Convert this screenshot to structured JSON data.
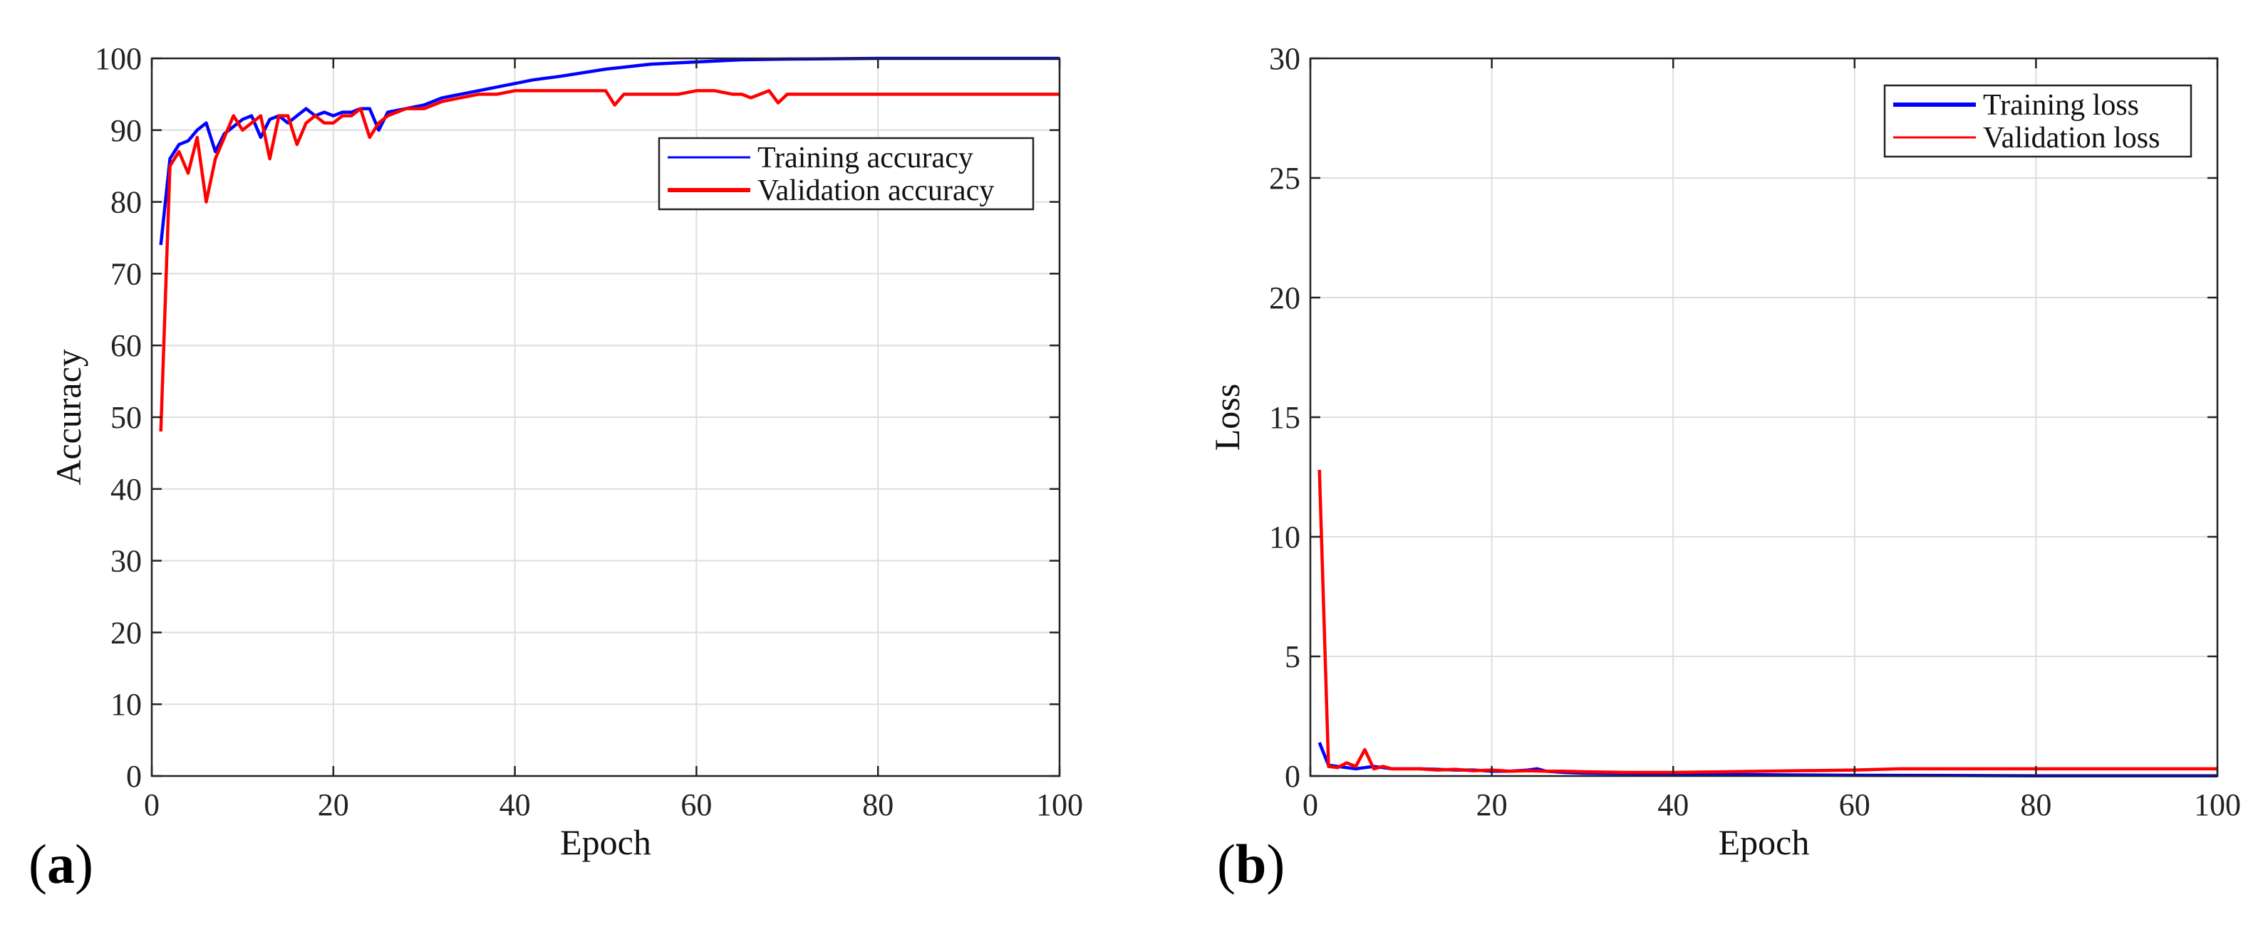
{
  "chart_data": [
    {
      "panel": "(a)",
      "type": "line",
      "xlabel": "Epoch",
      "ylabel": "Accuracy",
      "xlim": [
        0,
        100
      ],
      "ylim": [
        0,
        100
      ],
      "xticks": [
        0,
        20,
        40,
        60,
        80,
        100
      ],
      "yticks": [
        0,
        10,
        20,
        30,
        40,
        50,
        60,
        70,
        80,
        90,
        100
      ],
      "grid": true,
      "legend_position": "top-right",
      "series": [
        {
          "name": "Training accuracy",
          "color": "#0000ff",
          "x": [
            1,
            2,
            3,
            4,
            5,
            6,
            7,
            8,
            9,
            10,
            11,
            12,
            13,
            14,
            15,
            16,
            17,
            18,
            19,
            20,
            21,
            22,
            23,
            24,
            25,
            26,
            28,
            30,
            32,
            34,
            36,
            38,
            40,
            42,
            45,
            50,
            55,
            60,
            65,
            70,
            80,
            90,
            100
          ],
          "y": [
            74,
            86,
            88,
            88.5,
            90,
            91,
            87,
            89.5,
            90.5,
            91.5,
            92,
            89,
            91.5,
            92,
            91,
            92,
            93,
            92,
            92.5,
            92,
            92.5,
            92.5,
            93,
            93,
            90,
            92.5,
            93,
            93.5,
            94.5,
            95,
            95.5,
            96,
            96.5,
            97,
            97.5,
            98.5,
            99.2,
            99.5,
            99.8,
            99.9,
            100,
            100,
            100
          ]
        },
        {
          "name": "Validation accuracy",
          "color": "#ff0000",
          "x": [
            1,
            2,
            3,
            4,
            5,
            6,
            7,
            8,
            9,
            10,
            11,
            12,
            13,
            14,
            15,
            16,
            17,
            18,
            19,
            20,
            21,
            22,
            23,
            24,
            25,
            26,
            28,
            30,
            32,
            34,
            36,
            38,
            40,
            42,
            45,
            48,
            50,
            51,
            52,
            55,
            58,
            60,
            62,
            64,
            65,
            66,
            68,
            69,
            70,
            72,
            75,
            80,
            85,
            90,
            95,
            100
          ],
          "y": [
            48,
            85,
            87,
            84,
            89,
            80,
            86,
            89,
            92,
            90,
            91,
            92,
            86,
            92,
            92,
            88,
            91,
            92,
            91,
            91,
            92,
            92,
            93,
            89,
            91,
            92,
            93,
            93,
            94,
            94.5,
            95,
            95,
            95.5,
            95.5,
            95.5,
            95.5,
            95.5,
            93.5,
            95,
            95,
            95,
            95.5,
            95.5,
            95,
            95,
            94.5,
            95.5,
            93.8,
            95,
            95,
            95,
            95,
            95,
            95,
            95,
            95
          ]
        }
      ]
    },
    {
      "panel": "(b)",
      "type": "line",
      "xlabel": "Epoch",
      "ylabel": "Loss",
      "xlim": [
        0,
        100
      ],
      "ylim": [
        0,
        30
      ],
      "xticks": [
        0,
        20,
        40,
        60,
        80,
        100
      ],
      "yticks": [
        0,
        5,
        10,
        15,
        20,
        25,
        30
      ],
      "grid": true,
      "legend_position": "top-right",
      "series": [
        {
          "name": "Training loss",
          "color": "#0000ff",
          "x": [
            1,
            2,
            3,
            4,
            5,
            6,
            7,
            8,
            9,
            10,
            12,
            14,
            16,
            18,
            20,
            22,
            24,
            25,
            26,
            28,
            30,
            35,
            40,
            50,
            60,
            70,
            80,
            90,
            100
          ],
          "y": [
            1.4,
            0.45,
            0.4,
            0.35,
            0.3,
            0.35,
            0.4,
            0.35,
            0.3,
            0.3,
            0.3,
            0.28,
            0.25,
            0.25,
            0.2,
            0.2,
            0.25,
            0.3,
            0.2,
            0.15,
            0.12,
            0.1,
            0.08,
            0.05,
            0.03,
            0.02,
            0.01,
            0.01,
            0.01
          ]
        },
        {
          "name": "Validation loss",
          "color": "#ff0000",
          "x": [
            1,
            2,
            3,
            4,
            5,
            6,
            7,
            8,
            9,
            10,
            12,
            14,
            16,
            18,
            20,
            22,
            24,
            26,
            28,
            30,
            35,
            40,
            50,
            60,
            65,
            70,
            80,
            90,
            100
          ],
          "y": [
            12.8,
            0.4,
            0.35,
            0.55,
            0.4,
            1.1,
            0.3,
            0.4,
            0.3,
            0.3,
            0.3,
            0.25,
            0.28,
            0.22,
            0.25,
            0.2,
            0.22,
            0.2,
            0.2,
            0.18,
            0.15,
            0.15,
            0.2,
            0.25,
            0.3,
            0.3,
            0.3,
            0.3,
            0.3
          ]
        }
      ]
    }
  ]
}
